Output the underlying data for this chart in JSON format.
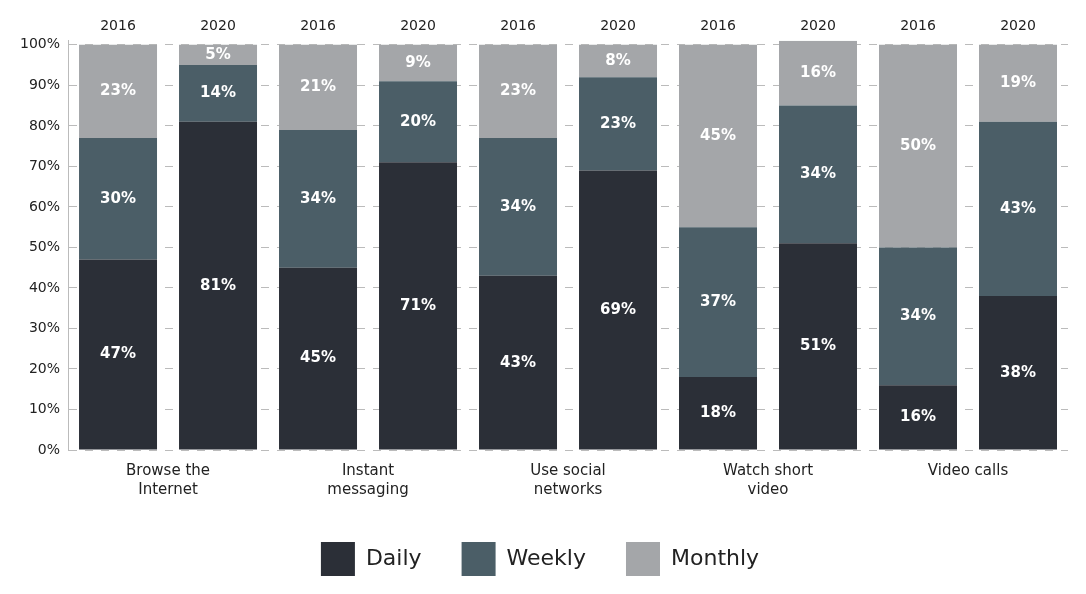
{
  "chart_data": {
    "type": "bar",
    "stacked": true,
    "categories": [
      "2016",
      "2020",
      "2016",
      "2020",
      "2016",
      "2020",
      "2016",
      "2020",
      "2016",
      "2020"
    ],
    "series": [
      {
        "name": "Daily",
        "color": "#2b2f37",
        "values": [
          47,
          81,
          45,
          71,
          43,
          69,
          18,
          51,
          16,
          38
        ],
        "value_labels": [
          "47%",
          "81%",
          "45%",
          "71%",
          "43%",
          "69%",
          "18%",
          "51%",
          "16%",
          "38%"
        ]
      },
      {
        "name": "Weekly",
        "color": "#4b5e67",
        "values": [
          30,
          14,
          34,
          20,
          34,
          23,
          37,
          34,
          34,
          43
        ],
        "value_labels": [
          "30%",
          "14%",
          "34%",
          "20%",
          "34%",
          "23%",
          "37%",
          "34%",
          "34%",
          "43%"
        ]
      },
      {
        "name": "Monthly",
        "color": "#a4a6a9",
        "values": [
          23,
          5,
          21,
          9,
          23,
          8,
          45,
          16,
          50,
          19
        ],
        "value_labels": [
          "23%",
          "5%",
          "21%",
          "9%",
          "23%",
          "8%",
          "45%",
          "16%",
          "50%",
          "19%"
        ]
      }
    ],
    "ylim": [
      0,
      101
    ],
    "yticks": [
      {
        "value": 0,
        "label": "0%"
      },
      {
        "value": 10,
        "label": "10%"
      },
      {
        "value": 20,
        "label": "20%"
      },
      {
        "value": 30,
        "label": "30%"
      },
      {
        "value": 40,
        "label": "40%"
      },
      {
        "value": 50,
        "label": "50%"
      },
      {
        "value": 60,
        "label": "60%"
      },
      {
        "value": 70,
        "label": "70%"
      },
      {
        "value": 80,
        "label": "80%"
      },
      {
        "value": 90,
        "label": "90%"
      },
      {
        "value": 100,
        "label": "100%"
      }
    ],
    "grid": "y",
    "legend": "bottom",
    "annotations": [
      "Browse the\nInternet",
      "Instant\nmessaging",
      "Use social\nnetworks",
      "Watch short\nvideo",
      "Video calls"
    ]
  }
}
